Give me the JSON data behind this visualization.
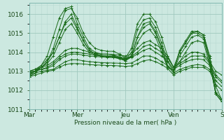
{
  "xlabel": "Pression niveau de la mer( hPa )",
  "xlim": [
    0,
    96
  ],
  "ylim": [
    1011.0,
    1016.6
  ],
  "yticks": [
    1011,
    1012,
    1013,
    1014,
    1015,
    1016
  ],
  "xtick_labels": [
    "Mar",
    "Mer",
    "Jeu",
    "Ven",
    "S"
  ],
  "xtick_positions": [
    0,
    24,
    48,
    72,
    96
  ],
  "background_color": "#cce8e0",
  "grid_minor_color": "#b8d8d0",
  "grid_major_color": "#a0c8be",
  "line_color": "#1a6b1a",
  "series": [
    {
      "x": [
        0,
        3,
        6,
        9,
        12,
        15,
        18,
        21,
        24,
        27,
        30,
        33,
        36,
        39,
        42,
        45,
        48,
        51,
        54,
        57,
        60,
        63,
        66,
        69,
        72,
        75,
        78,
        81,
        84,
        87,
        90,
        93,
        96
      ],
      "y": [
        1012.9,
        1013.0,
        1013.2,
        1013.5,
        1014.2,
        1015.2,
        1016.2,
        1016.3,
        1015.8,
        1015.0,
        1014.5,
        1014.2,
        1014.1,
        1014.05,
        1014.05,
        1013.9,
        1013.7,
        1014.2,
        1015.5,
        1016.0,
        1016.0,
        1015.6,
        1014.8,
        1013.8,
        1013.2,
        1014.0,
        1014.5,
        1015.0,
        1015.1,
        1014.9,
        1013.8,
        1012.2,
        1011.5
      ]
    },
    {
      "x": [
        0,
        3,
        6,
        9,
        12,
        15,
        18,
        21,
        24,
        27,
        30,
        33,
        36,
        39,
        42,
        45,
        48,
        51,
        54,
        57,
        60,
        63,
        66,
        69,
        72,
        75,
        78,
        81,
        84,
        87,
        90,
        93,
        96
      ],
      "y": [
        1012.8,
        1013.0,
        1013.3,
        1013.8,
        1014.8,
        1015.8,
        1016.3,
        1016.4,
        1015.5,
        1014.8,
        1014.2,
        1014.0,
        1013.9,
        1013.9,
        1013.85,
        1013.75,
        1013.6,
        1014.0,
        1015.2,
        1015.7,
        1015.8,
        1015.3,
        1014.5,
        1013.5,
        1013.0,
        1013.8,
        1014.3,
        1014.8,
        1014.9,
        1014.7,
        1013.5,
        1011.8,
        1011.4
      ]
    },
    {
      "x": [
        0,
        3,
        6,
        9,
        12,
        15,
        18,
        21,
        24,
        27,
        30,
        33,
        36,
        39,
        42,
        45,
        48,
        51,
        54,
        57,
        60,
        63,
        66,
        69,
        72,
        75,
        78,
        81,
        84,
        87,
        90,
        93,
        96
      ],
      "y": [
        1012.7,
        1012.9,
        1013.2,
        1013.5,
        1014.0,
        1014.8,
        1015.5,
        1015.8,
        1015.2,
        1014.6,
        1014.1,
        1013.9,
        1013.8,
        1013.8,
        1013.8,
        1013.7,
        1013.55,
        1013.8,
        1014.8,
        1015.5,
        1015.6,
        1015.1,
        1014.3,
        1013.3,
        1013.0,
        1013.5,
        1014.0,
        1014.5,
        1014.6,
        1014.5,
        1013.3,
        1011.9,
        1011.5
      ]
    },
    {
      "x": [
        0,
        3,
        6,
        9,
        12,
        15,
        18,
        21,
        24,
        27,
        30,
        33,
        36,
        39,
        42,
        45,
        48,
        51,
        54,
        57,
        60,
        63,
        66,
        69,
        72,
        75,
        78,
        81,
        84,
        87,
        90,
        93,
        96
      ],
      "y": [
        1013.0,
        1013.1,
        1013.2,
        1013.3,
        1013.5,
        1013.8,
        1014.1,
        1014.2,
        1014.2,
        1014.1,
        1014.0,
        1013.95,
        1013.9,
        1013.9,
        1013.88,
        1013.85,
        1013.8,
        1013.9,
        1014.2,
        1014.5,
        1014.6,
        1014.4,
        1014.2,
        1013.8,
        1013.2,
        1013.5,
        1013.8,
        1014.0,
        1014.0,
        1013.9,
        1013.5,
        1013.0,
        1012.8
      ]
    },
    {
      "x": [
        0,
        3,
        6,
        9,
        12,
        15,
        18,
        21,
        24,
        27,
        30,
        33,
        36,
        39,
        42,
        45,
        48,
        51,
        54,
        57,
        60,
        63,
        66,
        69,
        72,
        75,
        78,
        81,
        84,
        87,
        90,
        93,
        96
      ],
      "y": [
        1013.0,
        1013.0,
        1013.1,
        1013.2,
        1013.4,
        1013.7,
        1013.9,
        1014.0,
        1014.0,
        1013.95,
        1013.9,
        1013.85,
        1013.82,
        1013.8,
        1013.78,
        1013.75,
        1013.7,
        1013.78,
        1014.0,
        1014.3,
        1014.4,
        1014.2,
        1014.0,
        1013.7,
        1013.2,
        1013.4,
        1013.6,
        1013.8,
        1013.8,
        1013.8,
        1013.4,
        1012.8,
        1012.5
      ]
    },
    {
      "x": [
        0,
        3,
        6,
        9,
        12,
        15,
        18,
        21,
        24,
        27,
        30,
        33,
        36,
        39,
        42,
        45,
        48,
        51,
        54,
        57,
        60,
        63,
        66,
        69,
        72,
        75,
        78,
        81,
        84,
        87,
        90,
        93,
        96
      ],
      "y": [
        1012.9,
        1013.0,
        1013.1,
        1013.15,
        1013.3,
        1013.6,
        1013.8,
        1013.9,
        1013.9,
        1013.85,
        1013.8,
        1013.78,
        1013.75,
        1013.73,
        1013.72,
        1013.7,
        1013.65,
        1013.72,
        1013.9,
        1014.1,
        1014.2,
        1014.0,
        1013.8,
        1013.55,
        1013.1,
        1013.3,
        1013.5,
        1013.6,
        1013.65,
        1013.6,
        1013.3,
        1012.7,
        1012.4
      ]
    },
    {
      "x": [
        0,
        3,
        6,
        9,
        12,
        15,
        18,
        21,
        24,
        27,
        30,
        33,
        36,
        39,
        42,
        45,
        48,
        51,
        54,
        57,
        60,
        63,
        66,
        69,
        72,
        75,
        78,
        81,
        84,
        87,
        90,
        93,
        96
      ],
      "y": [
        1012.8,
        1012.9,
        1013.0,
        1013.05,
        1013.1,
        1013.3,
        1013.5,
        1013.6,
        1013.6,
        1013.55,
        1013.5,
        1013.48,
        1013.45,
        1013.44,
        1013.43,
        1013.42,
        1013.4,
        1013.43,
        1013.6,
        1013.8,
        1013.8,
        1013.7,
        1013.5,
        1013.3,
        1012.9,
        1013.1,
        1013.2,
        1013.3,
        1013.35,
        1013.3,
        1013.1,
        1012.5,
        1012.2
      ]
    },
    {
      "x": [
        0,
        3,
        6,
        9,
        12,
        15,
        18,
        21,
        24,
        27,
        30,
        33,
        36,
        39,
        42,
        45,
        48,
        51,
        54,
        57,
        60,
        63,
        66,
        69,
        72,
        75,
        78,
        81,
        84,
        87,
        90,
        93,
        96
      ],
      "y": [
        1012.7,
        1012.8,
        1012.9,
        1013.0,
        1013.05,
        1013.2,
        1013.35,
        1013.4,
        1013.4,
        1013.38,
        1013.35,
        1013.33,
        1013.32,
        1013.3,
        1013.3,
        1013.28,
        1013.25,
        1013.28,
        1013.4,
        1013.55,
        1013.6,
        1013.5,
        1013.35,
        1013.15,
        1012.8,
        1013.0,
        1013.1,
        1013.2,
        1013.2,
        1013.2,
        1013.0,
        1012.3,
        1012.0
      ]
    },
    {
      "x": [
        0,
        3,
        6,
        9,
        12,
        15,
        18,
        21,
        24,
        27,
        30,
        33,
        36,
        39,
        42,
        45,
        48,
        51,
        54,
        57,
        60,
        63,
        66,
        69,
        72,
        75,
        78,
        81,
        84,
        87,
        90,
        93,
        96
      ],
      "y": [
        1012.8,
        1013.0,
        1013.2,
        1013.4,
        1013.8,
        1014.5,
        1015.2,
        1015.5,
        1015.0,
        1014.4,
        1014.0,
        1013.85,
        1013.78,
        1013.75,
        1013.73,
        1013.65,
        1013.55,
        1013.75,
        1014.5,
        1015.0,
        1015.2,
        1014.8,
        1014.0,
        1013.2,
        1013.05,
        1014.0,
        1014.5,
        1015.0,
        1015.0,
        1014.8,
        1013.5,
        1011.8,
        1011.4
      ]
    },
    {
      "x": [
        0,
        3,
        6,
        9,
        12,
        15,
        18,
        21,
        24,
        27,
        30,
        33,
        36,
        39,
        42,
        45,
        48,
        51,
        54,
        57,
        60,
        63,
        66,
        69,
        72,
        75,
        78,
        81,
        84,
        87,
        90,
        93,
        96
      ],
      "y": [
        1013.0,
        1013.1,
        1013.3,
        1013.6,
        1014.0,
        1014.8,
        1015.6,
        1016.0,
        1015.3,
        1014.6,
        1014.1,
        1013.92,
        1013.83,
        1013.79,
        1013.77,
        1013.7,
        1013.6,
        1013.82,
        1014.8,
        1015.3,
        1015.5,
        1015.0,
        1014.2,
        1013.2,
        1013.05,
        1014.1,
        1014.6,
        1015.1,
        1015.1,
        1014.9,
        1013.7,
        1011.9,
        1011.5
      ]
    }
  ]
}
